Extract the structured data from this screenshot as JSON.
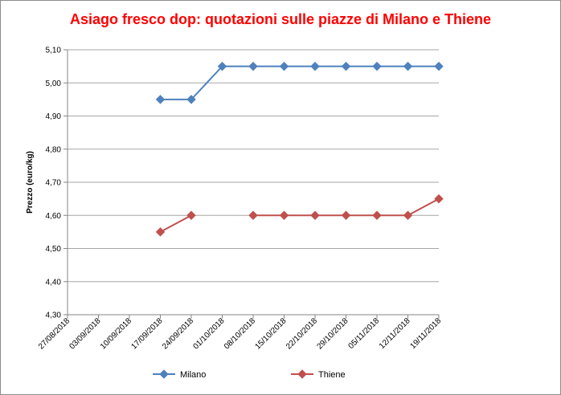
{
  "chart_data": {
    "type": "line",
    "title": "Asiago fresco dop: quotazioni sulle piazze di Milano e Thiene",
    "ylabel": "Prezzo (euro/kg)",
    "xlabel": "",
    "categories": [
      "27/08/2018",
      "03/09/2018",
      "10/09/2018",
      "17/09/2018",
      "24/09/2018",
      "01/10/2018",
      "08/10/2018",
      "15/10/2018",
      "22/10/2018",
      "29/10/2018",
      "05/11/2018",
      "12/11/2018",
      "19/11/2018"
    ],
    "ylim": [
      4.3,
      5.1
    ],
    "yticks": [
      4.3,
      4.4,
      4.5,
      4.6,
      4.7,
      4.8,
      4.9,
      5.0,
      5.1
    ],
    "ytick_labels": [
      "4,30",
      "4,40",
      "4,50",
      "4,60",
      "4,70",
      "4,80",
      "4,90",
      "5,00",
      "5,10"
    ],
    "grid": true,
    "legend_position": "bottom",
    "series": [
      {
        "name": "Milano",
        "color": "#4f81bd",
        "marker": "diamond",
        "values": [
          null,
          null,
          null,
          4.95,
          4.95,
          5.05,
          5.05,
          5.05,
          5.05,
          5.05,
          5.05,
          5.05,
          5.05
        ]
      },
      {
        "name": "Thiene",
        "color": "#c0504d",
        "marker": "diamond",
        "values": [
          null,
          null,
          null,
          4.55,
          4.6,
          null,
          4.6,
          4.6,
          4.6,
          4.6,
          4.6,
          4.6,
          4.65
        ]
      }
    ]
  }
}
